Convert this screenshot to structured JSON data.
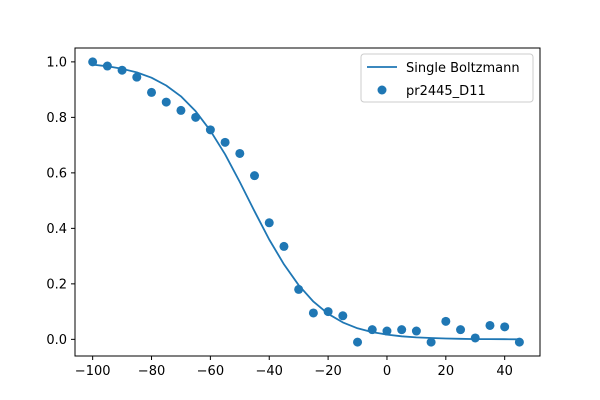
{
  "chart_data": {
    "type": "scatter",
    "title": "",
    "xlabel": "",
    "ylabel": "",
    "xlim": [
      -106,
      52
    ],
    "ylim": [
      -0.06,
      1.05
    ],
    "x_ticks": [
      -100,
      -80,
      -60,
      -40,
      -20,
      0,
      20,
      40
    ],
    "y_ticks": [
      0.0,
      0.2,
      0.4,
      0.6,
      0.8,
      1.0
    ],
    "x_tick_labels": [
      "−100",
      "−80",
      "−60",
      "−40",
      "−20",
      "0",
      "20",
      "40"
    ],
    "y_tick_labels": [
      "0.0",
      "0.2",
      "0.4",
      "0.6",
      "0.8",
      "1.0"
    ],
    "grid": false,
    "legend_position": "top-right",
    "color": "#1f77b4",
    "series": [
      {
        "name": "Single Boltzmann",
        "kind": "line",
        "x": [
          -100,
          -95,
          -90,
          -85,
          -80,
          -75,
          -70,
          -65,
          -60,
          -55,
          -50,
          -45,
          -40,
          -35,
          -30,
          -25,
          -20,
          -15,
          -10,
          -5,
          0,
          5,
          10,
          15,
          20,
          25,
          30,
          35,
          40,
          45
        ],
        "y": [
          0.99,
          0.984,
          0.975,
          0.962,
          0.943,
          0.915,
          0.876,
          0.822,
          0.752,
          0.667,
          0.567,
          0.462,
          0.36,
          0.27,
          0.195,
          0.136,
          0.092,
          0.061,
          0.04,
          0.026,
          0.017,
          0.011,
          0.007,
          0.005,
          0.003,
          0.002,
          0.001,
          0.0008,
          0.0005,
          0.0003
        ]
      },
      {
        "name": "pr2445_D11",
        "kind": "scatter",
        "x": [
          -100,
          -95,
          -90,
          -85,
          -80,
          -75,
          -70,
          -65,
          -60,
          -55,
          -50,
          -45,
          -40,
          -35,
          -30,
          -25,
          -20,
          -15,
          -10,
          -5,
          0,
          5,
          10,
          15,
          20,
          25,
          30,
          35,
          40,
          45
        ],
        "y": [
          1.0,
          0.985,
          0.97,
          0.945,
          0.89,
          0.855,
          0.825,
          0.8,
          0.755,
          0.71,
          0.67,
          0.59,
          0.42,
          0.335,
          0.18,
          0.095,
          0.1,
          0.085,
          -0.01,
          0.035,
          0.03,
          0.035,
          0.03,
          -0.01,
          0.065,
          0.035,
          0.005,
          0.05,
          0.045,
          -0.01
        ]
      }
    ]
  }
}
